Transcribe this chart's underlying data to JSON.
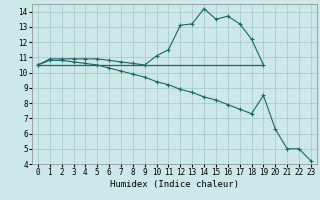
{
  "background_color": "#cce8e8",
  "grid_color": "#aacccc",
  "line_color": "#1a6868",
  "xlabel": "Humidex (Indice chaleur)",
  "xlim": [
    -0.5,
    23.5
  ],
  "ylim": [
    4,
    14.5
  ],
  "xticks": [
    0,
    1,
    2,
    3,
    4,
    5,
    6,
    7,
    8,
    9,
    10,
    11,
    12,
    13,
    14,
    15,
    16,
    17,
    18,
    19,
    20,
    21,
    22,
    23
  ],
  "yticks": [
    4,
    5,
    6,
    7,
    8,
    9,
    10,
    11,
    12,
    13,
    14
  ],
  "series": [
    {
      "x": [
        0,
        1,
        2,
        3,
        4,
        5,
        6,
        7,
        8,
        9,
        10,
        11,
        12,
        13,
        14,
        15,
        16,
        17,
        18,
        19,
        20,
        21,
        22,
        23
      ],
      "y": [
        10.5,
        10.9,
        10.9,
        10.9,
        10.9,
        10.9,
        10.8,
        10.7,
        10.6,
        10.5,
        11.1,
        11.5,
        13.1,
        13.2,
        14.2,
        13.5,
        13.7,
        13.2,
        12.2,
        10.5,
        null,
        null,
        null,
        null
      ],
      "marker": true
    },
    {
      "x": [
        0,
        19
      ],
      "y": [
        10.5,
        10.5
      ],
      "marker": false
    },
    {
      "x": [
        0,
        1,
        2,
        3,
        4,
        5,
        6,
        7,
        8,
        9,
        10,
        11,
        12,
        13,
        14,
        15,
        16,
        17,
        18,
        19,
        20,
        21,
        22,
        23
      ],
      "y": [
        10.5,
        10.8,
        10.8,
        10.7,
        10.6,
        10.5,
        10.3,
        10.1,
        9.9,
        9.7,
        9.4,
        9.2,
        8.9,
        8.7,
        8.4,
        8.2,
        7.9,
        7.6,
        7.3,
        8.5,
        6.3,
        5.0,
        5.0,
        4.2
      ],
      "marker": true
    }
  ]
}
